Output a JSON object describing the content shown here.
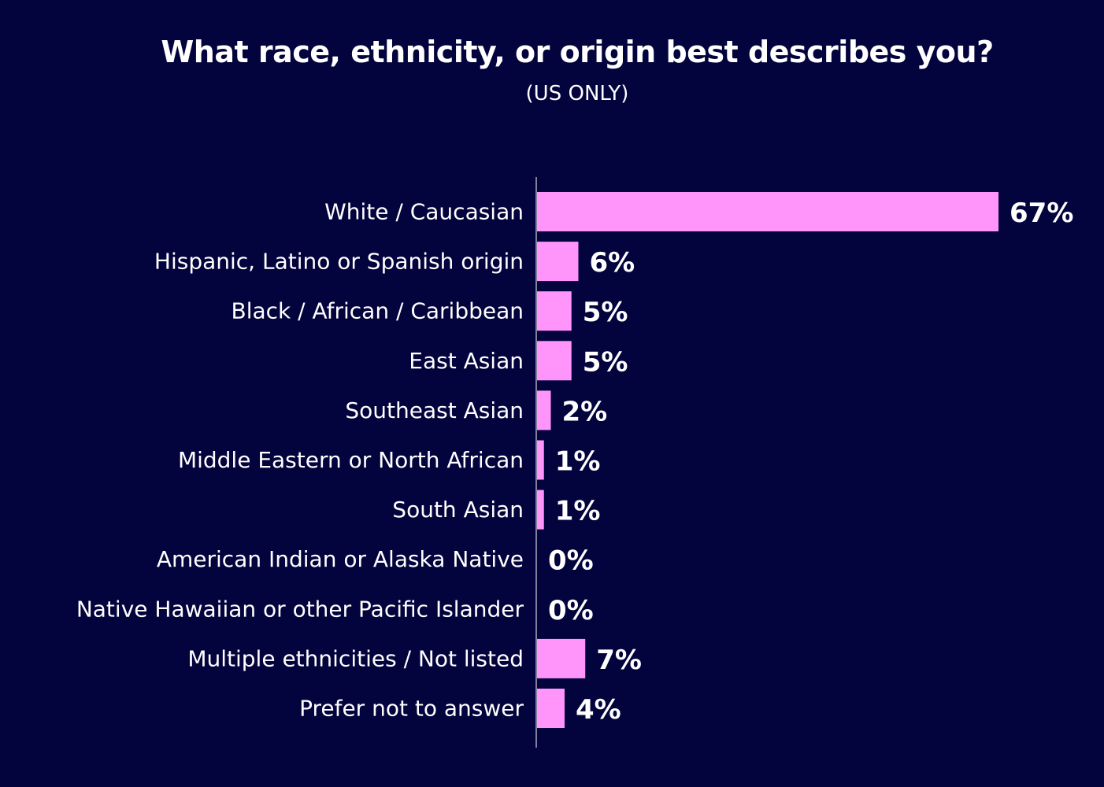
{
  "chart_data": {
    "type": "bar",
    "orientation": "horizontal",
    "title": "What race, ethnicity, or origin best describes you?",
    "subtitle": "(US ONLY)",
    "categories": [
      "White / Caucasian",
      "Hispanic, Latino or Spanish origin",
      "Black / African / Caribbean",
      "East Asian",
      "Southeast Asian",
      "Middle Eastern or North African",
      "South Asian",
      "American Indian or Alaska Native",
      "Native Hawaiian or other Pacific Islander",
      "Multiple ethnicities / Not listed",
      "Prefer not to answer"
    ],
    "values": [
      67,
      6,
      5,
      5,
      2,
      1,
      1,
      0,
      0,
      7,
      4
    ],
    "value_labels": [
      "67%",
      "6%",
      "5%",
      "5%",
      "2%",
      "1%",
      "1%",
      "0%",
      "0%",
      "7%",
      "4%"
    ],
    "unit": "%",
    "xlim": [
      0,
      67
    ],
    "grid": false,
    "legend": "none",
    "colors": {
      "background": "#03033d",
      "bar": "#ff94fb",
      "text": "#ffffff",
      "axis": "#ffffff"
    }
  }
}
